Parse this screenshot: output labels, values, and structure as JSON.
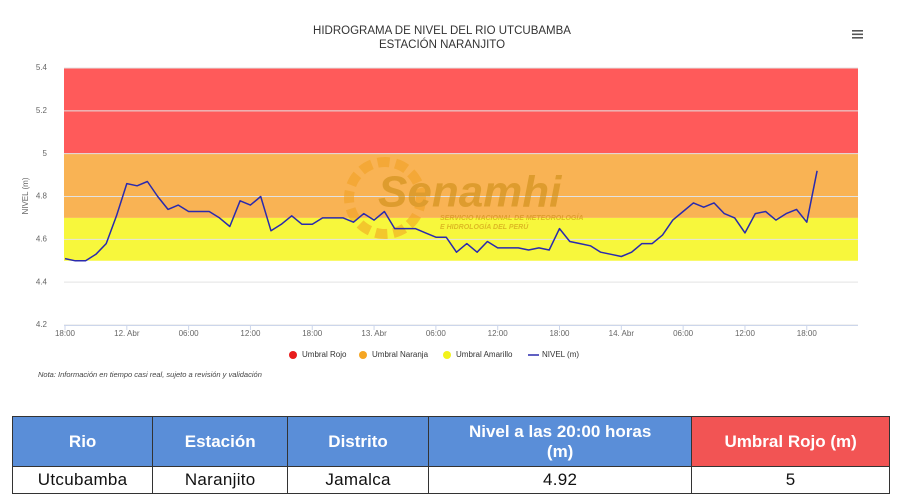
{
  "chart_data": {
    "type": "line",
    "title": "HIDROGRAMA DE NIVEL DEL RIO UTCUBAMBA",
    "subtitle": "ESTACIÓN NARANJITO",
    "y_label": "NIVEL (m)",
    "note": "Nota: Información en tiempo casi real, sujeto a revisión y validación",
    "watermark": "Senamhi",
    "watermark_lines": [
      "SERVICIO NACIONAL DE METEOROLOGÍA",
      "E HIDROLOGÍA DEL PERÚ"
    ],
    "categories": [
      "18:00",
      null,
      null,
      null,
      null,
      null,
      "12. Abr",
      null,
      null,
      null,
      null,
      null,
      "06:00",
      null,
      null,
      null,
      null,
      null,
      "12:00",
      null,
      null,
      null,
      null,
      null,
      "18:00",
      null,
      null,
      null,
      null,
      null,
      "13. Abr",
      null,
      null,
      null,
      null,
      null,
      "06:00",
      null,
      null,
      null,
      null,
      null,
      "12:00",
      null,
      null,
      null,
      null,
      null,
      "18:00",
      null,
      null,
      null,
      null,
      null,
      "14. Abr",
      null,
      null,
      null,
      null,
      null,
      "06:00",
      null,
      null,
      null,
      null,
      null,
      "12:00",
      null,
      null,
      null,
      null,
      null,
      "18:00",
      null,
      null,
      null,
      null,
      null
    ],
    "bands": [
      {
        "name": "Umbral Rojo",
        "from": 5,
        "to": 5.4,
        "color": "#ff5a5a"
      },
      {
        "name": "Umbral Naranja",
        "from": 4.7,
        "to": 5,
        "color": "#f9b354"
      },
      {
        "name": "Umbral Amarillo",
        "from": 4.5,
        "to": 4.7,
        "color": "#f7f73c"
      }
    ],
    "legend_colors": [
      "#e81c1c",
      "#f5a623",
      "#f2f21a"
    ],
    "series": [
      {
        "name": "NIVEL (m)",
        "color": "#2a2aae",
        "values": [
          4.51,
          4.5,
          4.5,
          4.53,
          4.58,
          4.71,
          4.86,
          4.85,
          4.87,
          4.8,
          4.74,
          4.76,
          4.73,
          4.73,
          4.73,
          4.7,
          4.66,
          4.78,
          4.76,
          4.8,
          4.64,
          4.67,
          4.71,
          4.67,
          4.67,
          4.7,
          4.7,
          4.7,
          4.68,
          4.72,
          4.69,
          4.73,
          4.65,
          4.65,
          4.65,
          4.63,
          4.61,
          4.61,
          4.54,
          4.58,
          4.54,
          4.59,
          4.56,
          4.56,
          4.56,
          4.55,
          4.56,
          4.55,
          4.65,
          4.59,
          4.58,
          4.57,
          4.54,
          4.53,
          4.52,
          4.54,
          4.58,
          4.58,
          4.62,
          4.69,
          4.73,
          4.77,
          4.75,
          4.77,
          4.72,
          4.7,
          4.63,
          4.72,
          4.73,
          4.69,
          4.72,
          4.74,
          4.68,
          4.92,
          null,
          null,
          null,
          null
        ]
      }
    ],
    "ylim": [
      4.2,
      5.4
    ],
    "yticks": [
      4.2,
      4.4,
      4.6,
      4.8,
      5,
      5.2,
      5.4
    ],
    "grid": true
  },
  "table": {
    "header": [
      "Rio",
      "Estación",
      "Distrito",
      "Nivel a las 20:00 horas (m)",
      "Umbral Rojo (m)"
    ],
    "rows": [
      [
        "Utcubamba",
        "Naranjito",
        "Jamalca",
        4.92,
        5
      ]
    ]
  }
}
